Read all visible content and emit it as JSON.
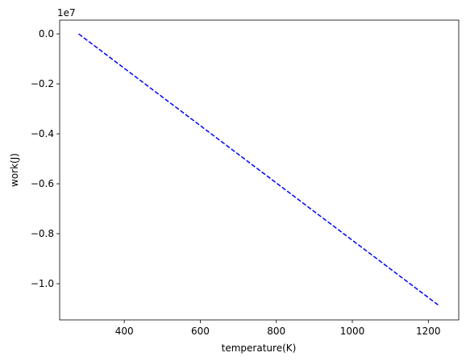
{
  "chart_data": {
    "type": "line",
    "xlabel": "temperature(K)",
    "ylabel": "work(J)",
    "y_offset_text": "1e7",
    "xlim": [
      230,
      1280
    ],
    "ylim": [
      -11.45,
      0.55
    ],
    "xticks": [
      400,
      600,
      800,
      1000,
      1200
    ],
    "xtick_labels": [
      "400",
      "600",
      "800",
      "1000",
      "1200"
    ],
    "yticks": [
      0.0,
      -0.2,
      -0.4,
      -0.6,
      -0.8,
      -1.0
    ],
    "ytick_labels": [
      "0.0",
      "−0.2",
      "−0.4",
      "−0.6",
      "−0.8",
      "−1.0"
    ],
    "grid": false,
    "series": [
      {
        "color": "#0000ff",
        "line_style": "dashed",
        "x": [
          280,
          1230
        ],
        "y": [
          0.0,
          -1.09
        ]
      }
    ]
  }
}
